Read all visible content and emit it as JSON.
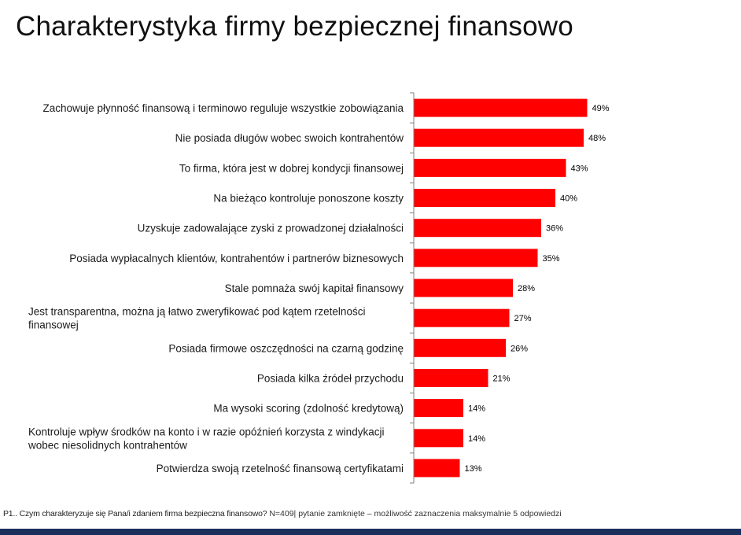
{
  "title": "Charakterystyka firmy bezpiecznej finansowo",
  "footnote": {
    "question": "P1.. Czym charakteryzuje się Pana/i zdaniem firma bezpieczna finansowo?",
    "details": "N=409| pytanie zamknięte – możliwość zaznaczenia maksymalnie 5 odpowiedzi"
  },
  "colors": {
    "bar": "#ff0000",
    "axis": "#7f7f7f",
    "footer_bar": "#1b2f5c"
  },
  "chart_data": {
    "type": "bar",
    "orientation": "horizontal",
    "categories": [
      [
        "Zachowuje płynność finansową i terminowo reguluje wszystkie zobowiązania"
      ],
      [
        "Nie posiada długów wobec swoich kontrahentów"
      ],
      [
        "To firma, która jest w dobrej kondycji finansowej"
      ],
      [
        "Na bieżąco kontroluje ponoszone koszty"
      ],
      [
        "Uzyskuje zadowalające zyski z prowadzonej działalności"
      ],
      [
        "Posiada wypłacalnych klientów, kontrahentów i partnerów biznesowych"
      ],
      [
        "Stale pomnaża swój kapitał finansowy"
      ],
      [
        "Jest transparentna, można ją łatwo zweryfikować pod kątem rzetelności",
        "finansowej"
      ],
      [
        "Posiada firmowe oszczędności na czarną godzinę"
      ],
      [
        "Posiada kilka źródeł przychodu"
      ],
      [
        "Ma wysoki scoring (zdolność kredytową)"
      ],
      [
        "Kontroluje wpływ środków na konto i w razie opóźnień korzysta z windykacji",
        "wobec niesolidnych kontrahentów"
      ],
      [
        "Potwierdza swoją rzetelność finansową certyfikatami"
      ]
    ],
    "values": [
      49,
      48,
      43,
      40,
      36,
      35,
      28,
      27,
      26,
      21,
      14,
      14,
      13
    ],
    "value_labels": [
      "49%",
      "48%",
      "43%",
      "40%",
      "36%",
      "35%",
      "28%",
      "27%",
      "26%",
      "21%",
      "14%",
      "14%",
      "13%"
    ],
    "xlim": [
      0,
      100
    ],
    "grid": false,
    "legend": "none"
  }
}
